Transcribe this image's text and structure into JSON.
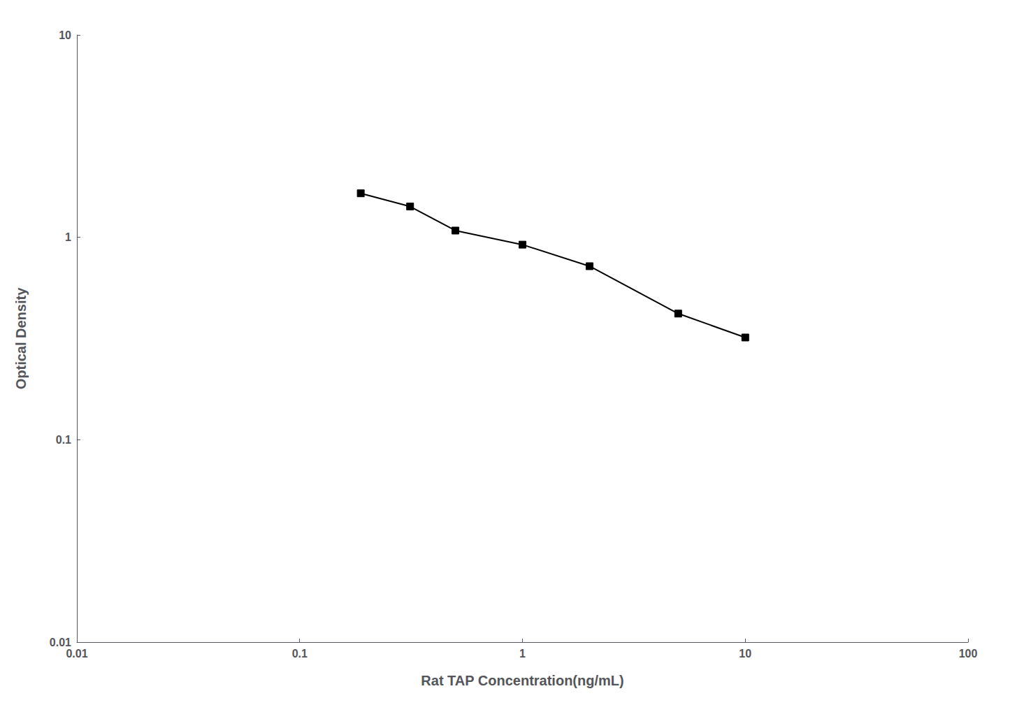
{
  "chart_data": {
    "type": "line",
    "xlabel": "Rat TAP Concentration(ng/mL)",
    "ylabel": "Optical Density",
    "x": [
      0.188,
      0.313,
      0.5,
      1.0,
      2.0,
      5.0,
      10.0
    ],
    "values": [
      1.65,
      1.42,
      1.08,
      0.92,
      0.72,
      0.42,
      0.32
    ],
    "color": "#000000",
    "marker": "square",
    "log": true,
    "xlim": [
      0.01,
      100
    ],
    "ylim": [
      0.01,
      10
    ],
    "xticks": [
      0.01,
      0.1,
      1,
      10,
      100
    ],
    "yticks": [
      0.01,
      0.1,
      1,
      10
    ],
    "grid": false
  }
}
